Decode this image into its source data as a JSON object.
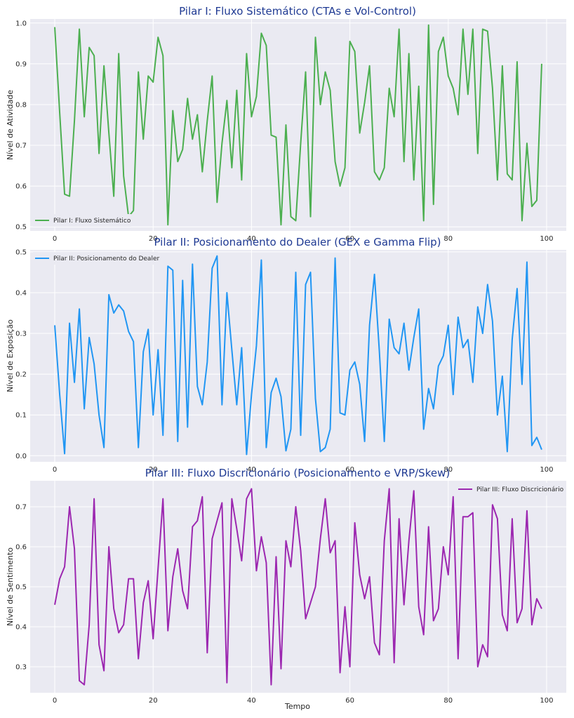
{
  "chart_data": [
    {
      "type": "line",
      "title": "Pilar I: Fluxo Sistemático (CTAs e Vol-Control)",
      "ylabel": "Nível de Atividade",
      "xlabel": "",
      "color": "#4caf50",
      "legend": "top-left",
      "ylim": [
        0.49,
        1.01
      ],
      "yticks": [
        0.5,
        0.6,
        0.7,
        0.8,
        0.9,
        1.0
      ],
      "ytick_labels": [
        "0.5",
        "0.6",
        "0.7",
        "0.8",
        "0.9",
        "1.0"
      ],
      "xlim": [
        -5,
        104
      ],
      "xticks": [
        0,
        20,
        40,
        60,
        80,
        100
      ],
      "xtick_labels": [
        "0",
        "20",
        "40",
        "60",
        "80",
        "100"
      ],
      "series": [
        {
          "name": "Pilar I: Fluxo Sistemático",
          "values": [
            0.99,
            0.78,
            0.58,
            0.575,
            0.76,
            0.985,
            0.77,
            0.94,
            0.92,
            0.68,
            0.895,
            0.73,
            0.575,
            0.925,
            0.625,
            0.525,
            0.54,
            0.88,
            0.715,
            0.87,
            0.855,
            0.965,
            0.92,
            0.505,
            0.785,
            0.66,
            0.69,
            0.815,
            0.715,
            0.775,
            0.635,
            0.76,
            0.87,
            0.56,
            0.705,
            0.81,
            0.645,
            0.835,
            0.615,
            0.925,
            0.77,
            0.82,
            0.975,
            0.945,
            0.725,
            0.72,
            0.505,
            0.75,
            0.525,
            0.515,
            0.705,
            0.88,
            0.525,
            0.965,
            0.8,
            0.88,
            0.835,
            0.66,
            0.6,
            0.645,
            0.955,
            0.93,
            0.73,
            0.805,
            0.895,
            0.635,
            0.615,
            0.645,
            0.84,
            0.77,
            0.985,
            0.66,
            0.925,
            0.615,
            0.845,
            0.515,
            0.995,
            0.555,
            0.93,
            0.965,
            0.87,
            0.84,
            0.775,
            0.985,
            0.825,
            0.985,
            0.68,
            0.985,
            0.98,
            0.84,
            0.615,
            0.895,
            0.63,
            0.615,
            0.905,
            0.515,
            0.705,
            0.55,
            0.565,
            0.9
          ]
        }
      ]
    },
    {
      "type": "line",
      "title": "Pilar II: Posicionamento do Dealer (GEX e Gamma Flip)",
      "ylabel": "Nível de Exposição",
      "xlabel": "",
      "color": "#2196f3",
      "legend": "top-left",
      "ylim": [
        -0.015,
        0.505
      ],
      "yticks": [
        0.0,
        0.1,
        0.2,
        0.3,
        0.4,
        0.5
      ],
      "ytick_labels": [
        "0.0",
        "0.1",
        "0.2",
        "0.3",
        "0.4",
        "0.5"
      ],
      "xlim": [
        -5,
        104
      ],
      "xticks": [
        0,
        20,
        40,
        60,
        80,
        100
      ],
      "xtick_labels": [
        "0",
        "20",
        "40",
        "60",
        "80",
        "100"
      ],
      "series": [
        {
          "name": "Pilar II: Posicionamento do Dealer",
          "values": [
            0.32,
            0.15,
            0.005,
            0.325,
            0.18,
            0.36,
            0.115,
            0.29,
            0.225,
            0.1,
            0.02,
            0.395,
            0.35,
            0.37,
            0.355,
            0.305,
            0.28,
            0.02,
            0.255,
            0.31,
            0.1,
            0.26,
            0.05,
            0.465,
            0.455,
            0.035,
            0.43,
            0.07,
            0.47,
            0.17,
            0.125,
            0.23,
            0.46,
            0.49,
            0.125,
            0.4,
            0.26,
            0.125,
            0.265,
            0.003,
            0.15,
            0.27,
            0.48,
            0.02,
            0.155,
            0.19,
            0.145,
            0.012,
            0.065,
            0.45,
            0.05,
            0.42,
            0.45,
            0.14,
            0.01,
            0.02,
            0.065,
            0.485,
            0.105,
            0.1,
            0.21,
            0.23,
            0.175,
            0.035,
            0.32,
            0.445,
            0.255,
            0.035,
            0.335,
            0.265,
            0.25,
            0.325,
            0.21,
            0.29,
            0.36,
            0.065,
            0.165,
            0.115,
            0.22,
            0.245,
            0.32,
            0.15,
            0.34,
            0.265,
            0.285,
            0.18,
            0.365,
            0.3,
            0.42,
            0.33,
            0.1,
            0.195,
            0.01,
            0.285,
            0.41,
            0.175,
            0.475,
            0.025,
            0.045,
            0.015
          ]
        }
      ]
    },
    {
      "type": "line",
      "title": "Pilar III: Fluxo Discricionário (Posicionamento e VRP/Skew)",
      "ylabel": "Nível de Sentimento",
      "xlabel": "Tempo",
      "color": "#9c27b0",
      "legend": "top-right",
      "ylim": [
        0.235,
        0.765
      ],
      "yticks": [
        0.3,
        0.4,
        0.5,
        0.6,
        0.7
      ],
      "ytick_labels": [
        "0.3",
        "0.4",
        "0.5",
        "0.6",
        "0.7"
      ],
      "xlim": [
        -5,
        104
      ],
      "xticks": [
        0,
        20,
        40,
        60,
        80,
        100
      ],
      "xtick_labels": [
        "0",
        "20",
        "40",
        "60",
        "80",
        "100"
      ],
      "series": [
        {
          "name": "Pilar III: Fluxo Discricionário",
          "values": [
            0.455,
            0.52,
            0.55,
            0.7,
            0.595,
            0.265,
            0.255,
            0.405,
            0.72,
            0.355,
            0.29,
            0.6,
            0.445,
            0.385,
            0.405,
            0.52,
            0.52,
            0.32,
            0.46,
            0.515,
            0.37,
            0.545,
            0.72,
            0.39,
            0.525,
            0.595,
            0.49,
            0.445,
            0.65,
            0.665,
            0.725,
            0.335,
            0.62,
            0.665,
            0.71,
            0.26,
            0.72,
            0.645,
            0.565,
            0.72,
            0.745,
            0.54,
            0.625,
            0.56,
            0.255,
            0.575,
            0.295,
            0.615,
            0.55,
            0.7,
            0.59,
            0.42,
            0.46,
            0.5,
            0.62,
            0.72,
            0.585,
            0.615,
            0.285,
            0.45,
            0.3,
            0.66,
            0.53,
            0.47,
            0.525,
            0.36,
            0.33,
            0.615,
            0.745,
            0.31,
            0.67,
            0.455,
            0.615,
            0.74,
            0.45,
            0.38,
            0.65,
            0.415,
            0.445,
            0.6,
            0.53,
            0.725,
            0.32,
            0.675,
            0.675,
            0.685,
            0.3,
            0.355,
            0.325,
            0.705,
            0.67,
            0.43,
            0.39,
            0.67,
            0.41,
            0.445,
            0.69,
            0.405,
            0.47,
            0.445
          ]
        }
      ]
    }
  ]
}
